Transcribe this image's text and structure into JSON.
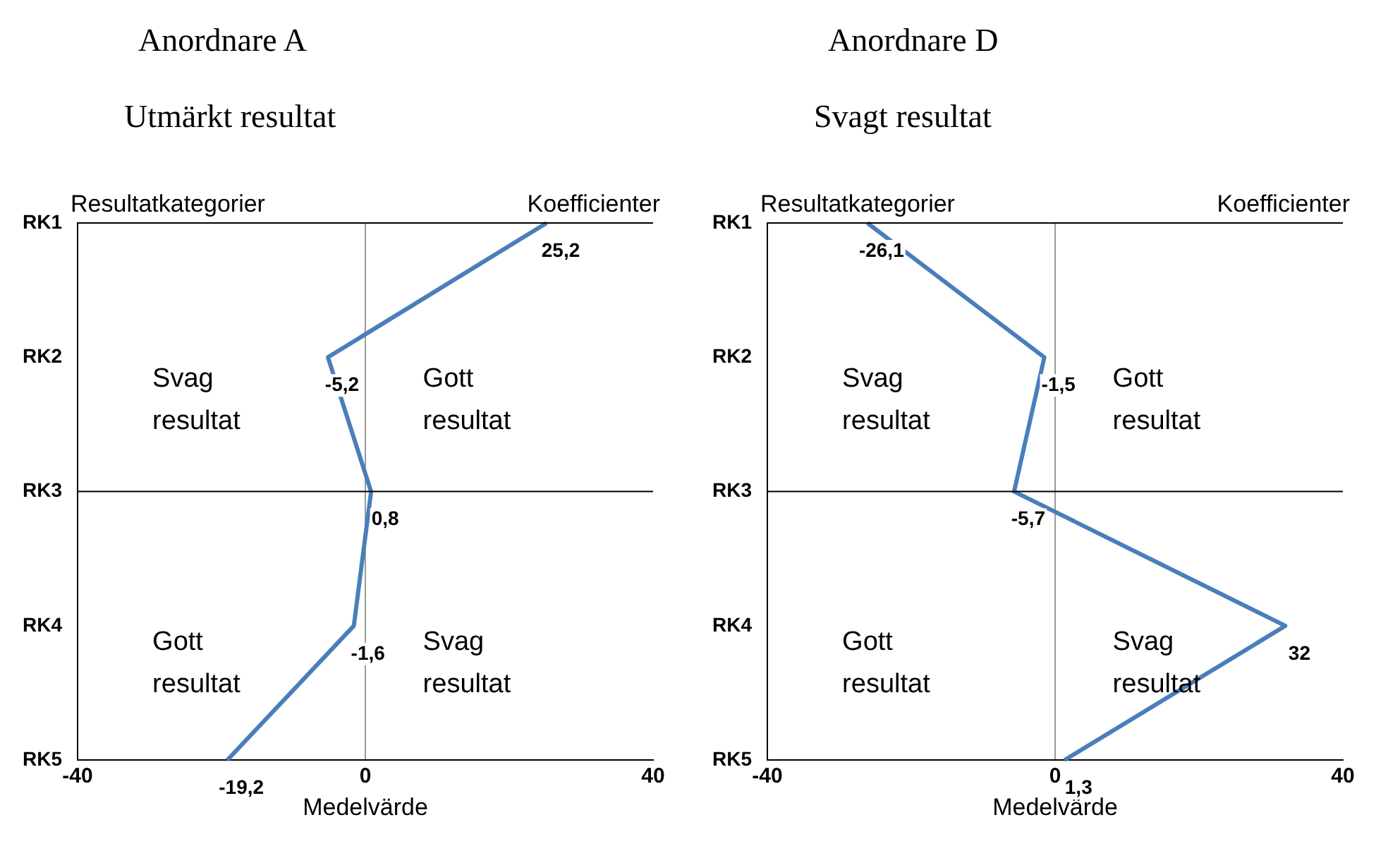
{
  "chart_data": [
    {
      "type": "line",
      "title": "Anordnare A",
      "subtitle": "Utmärkt resultat",
      "orientation": "horizontal",
      "categories": [
        "RK1",
        "RK2",
        "RK3",
        "RK4",
        "RK5"
      ],
      "values": [
        25.2,
        -5.2,
        0.8,
        -1.6,
        -19.2
      ],
      "value_labels": [
        "25,2",
        "-5,2",
        "0,8",
        "-1,6",
        "-19,2"
      ],
      "color": "#4a7ebb",
      "xlim": [
        -40,
        40
      ],
      "xticks": [
        -40,
        0,
        40
      ],
      "xlabel": "Medelvärde",
      "ref_lines": [
        {
          "axis": "y",
          "value": "RK3",
          "color": "#000000"
        }
      ],
      "annotations": [
        "Resultatkategorier",
        "Koefficienter",
        "Svag resultat",
        "Gott resultat",
        "Gott resultat",
        "Svag resultat"
      ]
    },
    {
      "type": "line",
      "title": "Anordnare D",
      "subtitle": "Svagt resultat",
      "orientation": "horizontal",
      "categories": [
        "RK1",
        "RK2",
        "RK3",
        "RK4",
        "RK5"
      ],
      "values": [
        -26.1,
        -1.5,
        -5.7,
        32,
        1.3
      ],
      "value_labels": [
        "-26,1",
        "-1,5",
        "-5,7",
        "32",
        "1,3"
      ],
      "color": "#4a7ebb",
      "xlim": [
        -40,
        40
      ],
      "xticks": [
        -40,
        0,
        40
      ],
      "xlabel": "Medelvärde",
      "ref_lines": [
        {
          "axis": "y",
          "value": "RK3",
          "color": "#000000"
        }
      ],
      "annotations": [
        "Resultatkategorier",
        "Koefficienter",
        "Svag resultat",
        "Gott resultat",
        "Gott resultat",
        "Svag resultat"
      ]
    }
  ]
}
